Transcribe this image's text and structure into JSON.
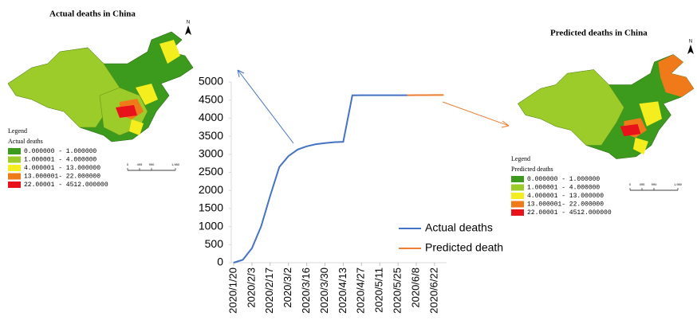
{
  "maps": [
    {
      "title": "Actual deaths in China",
      "north": "N",
      "legend_heading": "Legend",
      "legend_title": "Actual deaths",
      "legend_items": [
        {
          "label": "0.000000 - 1.000000",
          "color": "#3c9a1c"
        },
        {
          "label": "1.000001 - 4.000000",
          "color": "#9ccc2a"
        },
        {
          "label": "4.000001 - 13.000000",
          "color": "#f5ee1e"
        },
        {
          "label": "13.000001- 22.000000",
          "color": "#f07a1a"
        },
        {
          "label": "22.00001 - 4512.000000",
          "color": "#e8121a"
        }
      ],
      "scale_labels": [
        "0",
        "495",
        "990",
        "1,980"
      ]
    },
    {
      "title": "Predicted deaths in China",
      "north": "N",
      "legend_heading": "Legend",
      "legend_title": "Predicted deaths",
      "legend_items": [
        {
          "label": "0.000000 - 1.000000",
          "color": "#3c9a1c"
        },
        {
          "label": "1.000001 - 4.000000",
          "color": "#9ccc2a"
        },
        {
          "label": "4.000001 - 13.000000",
          "color": "#f5ee1e"
        },
        {
          "label": "13.000001- 22.000000",
          "color": "#f07a1a"
        },
        {
          "label": "22.00001 - 4512.000000",
          "color": "#e8121a"
        }
      ],
      "scale_labels": [
        "0",
        "495",
        "990",
        "1,980"
      ]
    }
  ],
  "chart_data": {
    "type": "line",
    "categories": [
      "2020/1/20",
      null,
      "2020/2/3",
      null,
      "2020/2/17",
      null,
      "2020/3/2",
      null,
      "2020/3/16",
      null,
      "2020/3/30",
      null,
      "2020/4/13",
      null,
      "2020/4/27",
      null,
      "2020/5/11",
      null,
      "2020/5/25",
      null,
      "2020/6/8",
      null,
      "2020/6/22",
      null
    ],
    "series": [
      {
        "name": "Actual deaths",
        "color": "#4472c4",
        "values": [
          0,
          80,
          400,
          1000,
          1850,
          2650,
          2950,
          3130,
          3220,
          3280,
          3310,
          3335,
          3345,
          4632,
          4633,
          4633,
          4634,
          4634,
          4634,
          4634,
          null,
          null,
          null,
          null
        ]
      },
      {
        "name": "Predicted death",
        "color": "#ed7d31",
        "values": [
          null,
          null,
          null,
          null,
          null,
          null,
          null,
          null,
          null,
          null,
          null,
          null,
          null,
          null,
          null,
          null,
          null,
          null,
          null,
          4634,
          4636,
          4637,
          4638,
          4640
        ]
      }
    ],
    "ylim": [
      0,
      5000
    ],
    "yticks": [
      0,
      500,
      1000,
      1500,
      2000,
      2500,
      3000,
      3500,
      4000,
      4500,
      5000
    ],
    "grid": false
  }
}
